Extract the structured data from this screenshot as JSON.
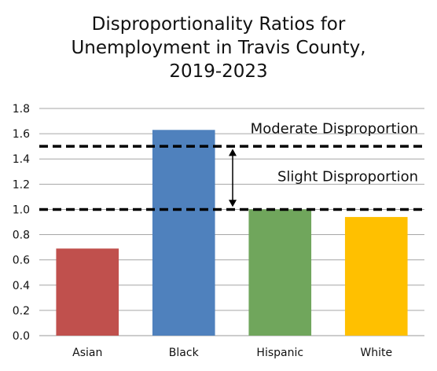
{
  "chart_data": {
    "type": "bar",
    "title_lines": [
      "Disproportionality Ratios for",
      "Unemployment in Travis County,",
      "2019-2023"
    ],
    "categories": [
      "Asian",
      "Black",
      "Hispanic",
      "White"
    ],
    "values": [
      0.69,
      1.63,
      1.0,
      0.94
    ],
    "colors": [
      "#c0504d",
      "#4f81bd",
      "#70a65c",
      "#ffc000"
    ],
    "ylim": [
      0,
      1.8
    ],
    "yticks": [
      "0.0",
      "0.2",
      "0.4",
      "0.6",
      "0.8",
      "1.0",
      "1.2",
      "1.4",
      "1.6",
      "1.8"
    ],
    "grid": true,
    "reference_lines": [
      {
        "y": 1.0,
        "style": "dashed"
      },
      {
        "y": 1.5,
        "style": "dashed"
      }
    ],
    "annotations": [
      {
        "text": "Moderate Disproportion",
        "y": 1.64
      },
      {
        "text": "Slight Disproportion",
        "y": 1.26
      }
    ],
    "arrow": {
      "from": 1.02,
      "to": 1.48
    }
  }
}
